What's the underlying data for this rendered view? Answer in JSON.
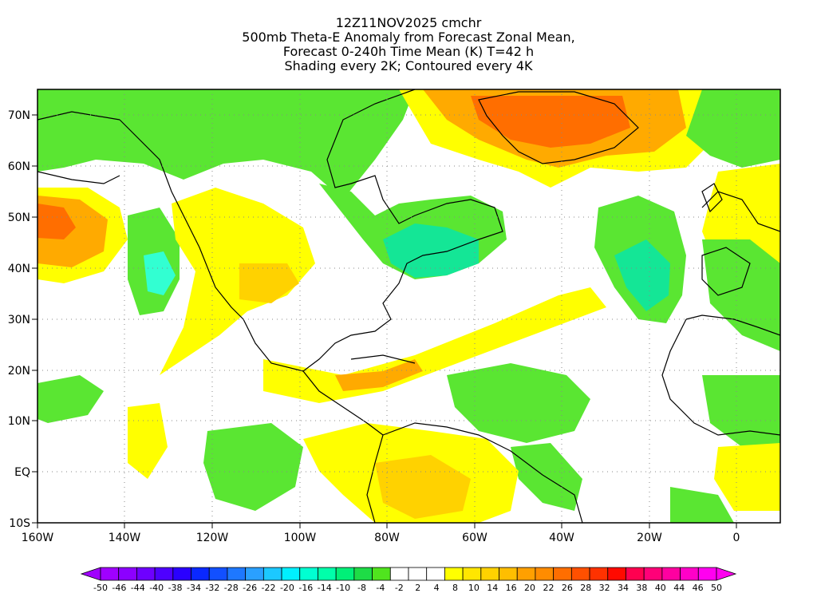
{
  "titles": [
    "12Z11NOV2025 cmchr",
    "500mb Theta-E Anomaly from Forecast Zonal Mean,",
    "Forecast 0-240h Time Mean (K) T=42 h",
    "Shading every 2K; Contoured every 4K"
  ],
  "lat_labels": [
    "70N",
    "60N",
    "50N",
    "40N",
    "30N",
    "20N",
    "10N",
    "EQ",
    "10S"
  ],
  "lon_labels": [
    "160W",
    "140W",
    "120W",
    "100W",
    "80W",
    "60W",
    "40W",
    "20W",
    "0"
  ],
  "colorbar": {
    "labels": [
      "-50",
      "-46",
      "-44",
      "-40",
      "-38",
      "-34",
      "-32",
      "-28",
      "-26",
      "-22",
      "-20",
      "-16",
      "-14",
      "-10",
      "-8",
      "-4",
      "-2",
      "2",
      "4",
      "8",
      "10",
      "14",
      "16",
      "20",
      "22",
      "26",
      "28",
      "32",
      "34",
      "38",
      "40",
      "44",
      "46",
      "50"
    ],
    "colors": [
      "#a000ff",
      "#8c00ff",
      "#6e00ff",
      "#4e00ff",
      "#2a00ff",
      "#0a28ff",
      "#1250ff",
      "#1e78ff",
      "#2aa0ff",
      "#1cc8ff",
      "#00f0ff",
      "#00ffd2",
      "#00ffaa",
      "#00f078",
      "#1edc46",
      "#50e41e",
      "#ffffff",
      "#ffffff",
      "#ffffff",
      "#ffff00",
      "#ffe600",
      "#ffd200",
      "#ffbe00",
      "#ffa000",
      "#ff8c00",
      "#ff6e00",
      "#ff5000",
      "#ff3200",
      "#ff0a00",
      "#ff0050",
      "#ff0078",
      "#ff00a0",
      "#ff00c8",
      "#ff00f0"
    ]
  },
  "map_colors": {
    "green": "#5ae632",
    "teal": "#14e696",
    "aqua": "#32ffd2",
    "yellow": "#ffff00",
    "lightorange": "#ffd200",
    "orange": "#ffaa00",
    "redorange": "#ff6e00"
  }
}
